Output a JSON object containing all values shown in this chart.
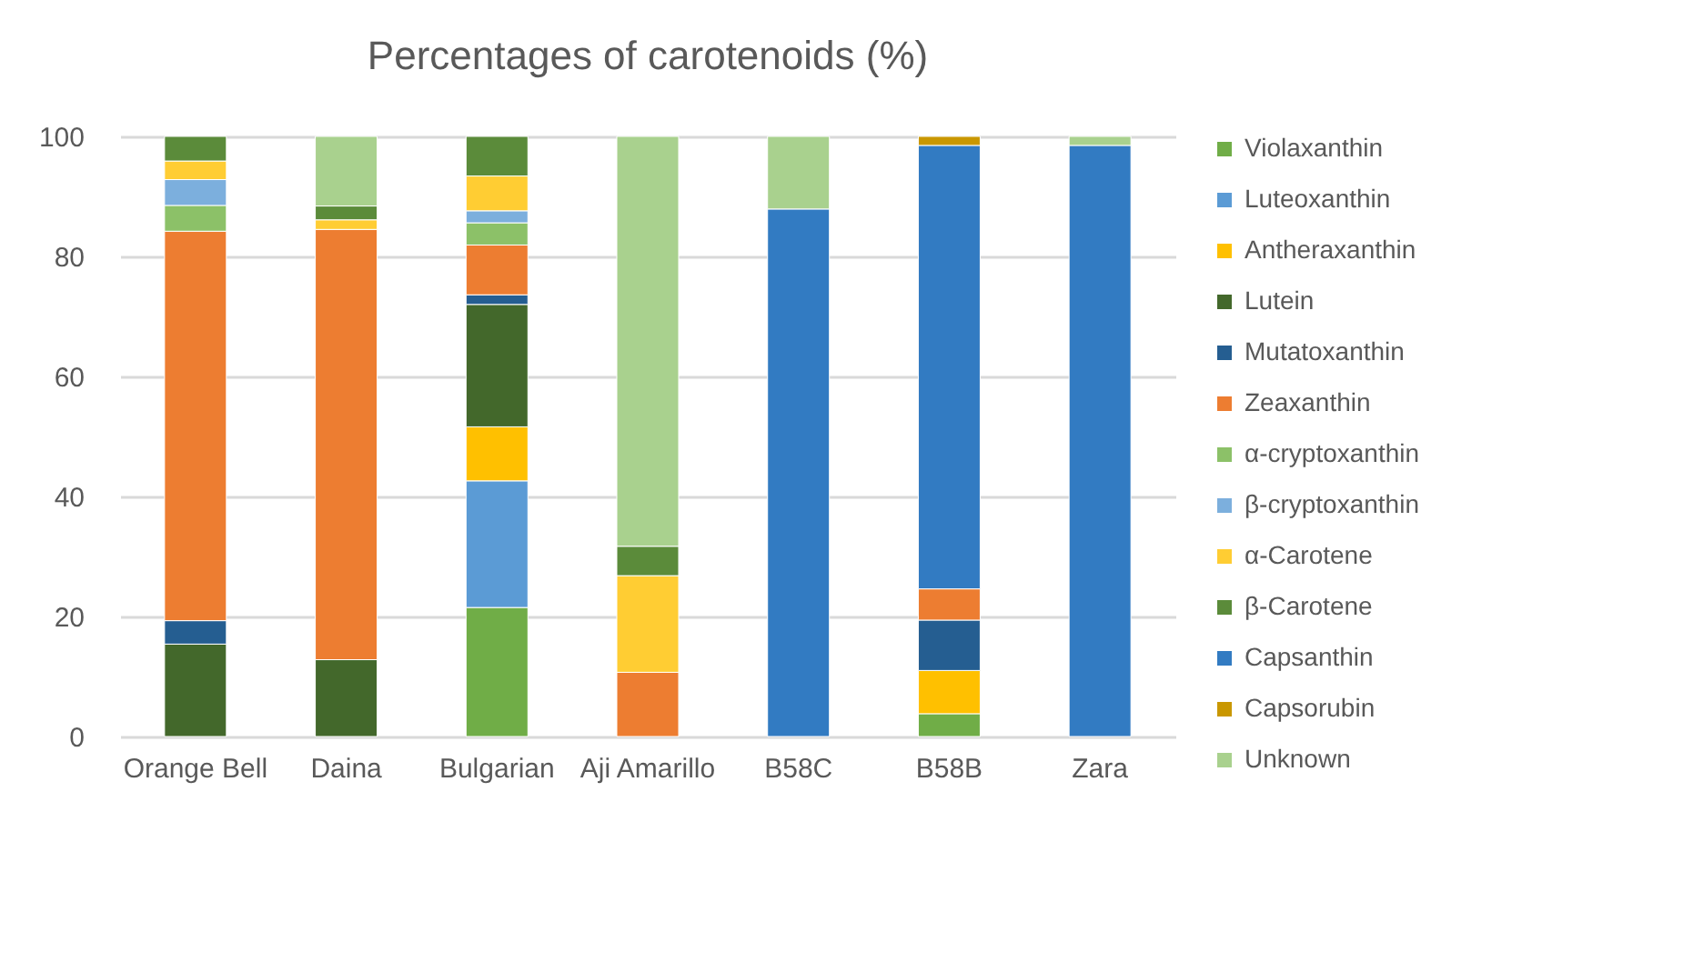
{
  "chart_data": {
    "type": "bar",
    "stacked": true,
    "title": "Percentages of carotenoids (%)",
    "categories": [
      "Orange Bell",
      "Daina",
      "Bulgarian",
      "Aji Amarillo",
      "B58C",
      "B58B",
      "Zara"
    ],
    "series": [
      {
        "name": "Violaxanthin",
        "color": "#70ad47",
        "values": [
          null,
          null,
          21.5,
          null,
          null,
          3.8,
          null
        ]
      },
      {
        "name": "Luteoxanthin",
        "color": "#5b9bd5",
        "values": [
          null,
          null,
          21.1,
          null,
          null,
          null,
          null
        ]
      },
      {
        "name": "Antheraxanthin",
        "color": "#ffc000",
        "values": [
          null,
          null,
          9.0,
          null,
          null,
          7.2,
          null
        ]
      },
      {
        "name": "Lutein",
        "color": "#43682b",
        "values": [
          15.4,
          12.8,
          20.4,
          null,
          null,
          null,
          null
        ]
      },
      {
        "name": "Mutatoxanthin",
        "color": "#255e91",
        "values": [
          3.9,
          null,
          1.6,
          null,
          null,
          8.4,
          null
        ]
      },
      {
        "name": "Zeaxanthin",
        "color": "#ed7d31",
        "values": [
          64.9,
          71.7,
          8.3,
          10.7,
          null,
          5.2,
          null
        ]
      },
      {
        "name": "α-cryptoxanthin",
        "color": "#8cc168",
        "values": [
          4.3,
          null,
          3.7,
          null,
          null,
          null,
          null
        ]
      },
      {
        "name": "β-cryptoxanthin",
        "color": "#7cafdd",
        "values": [
          4.3,
          null,
          2.0,
          null,
          null,
          null,
          null
        ]
      },
      {
        "name": "α-Carotene",
        "color": "#ffcd33",
        "values": [
          3.1,
          1.6,
          5.8,
          16.1,
          null,
          null,
          null
        ]
      },
      {
        "name": "β-Carotene",
        "color": "#5b8b3a",
        "values": [
          4.1,
          2.3,
          6.6,
          4.9,
          null,
          null,
          null
        ]
      },
      {
        "name": "Capsanthin",
        "color": "#327bc2",
        "values": [
          null,
          null,
          null,
          null,
          87.9,
          73.9,
          98.5
        ]
      },
      {
        "name": "Capsorubin",
        "color": "#c99700",
        "values": [
          null,
          null,
          null,
          null,
          null,
          1.5,
          null
        ]
      },
      {
        "name": "Unknown",
        "color": "#a9d18e",
        "values": [
          null,
          11.6,
          null,
          68.3,
          12.1,
          null,
          1.5
        ]
      }
    ],
    "ylim": [
      0,
      100
    ],
    "yticks": [
      0,
      20,
      40,
      60,
      80,
      100
    ],
    "grid": "y",
    "legend": "right"
  }
}
